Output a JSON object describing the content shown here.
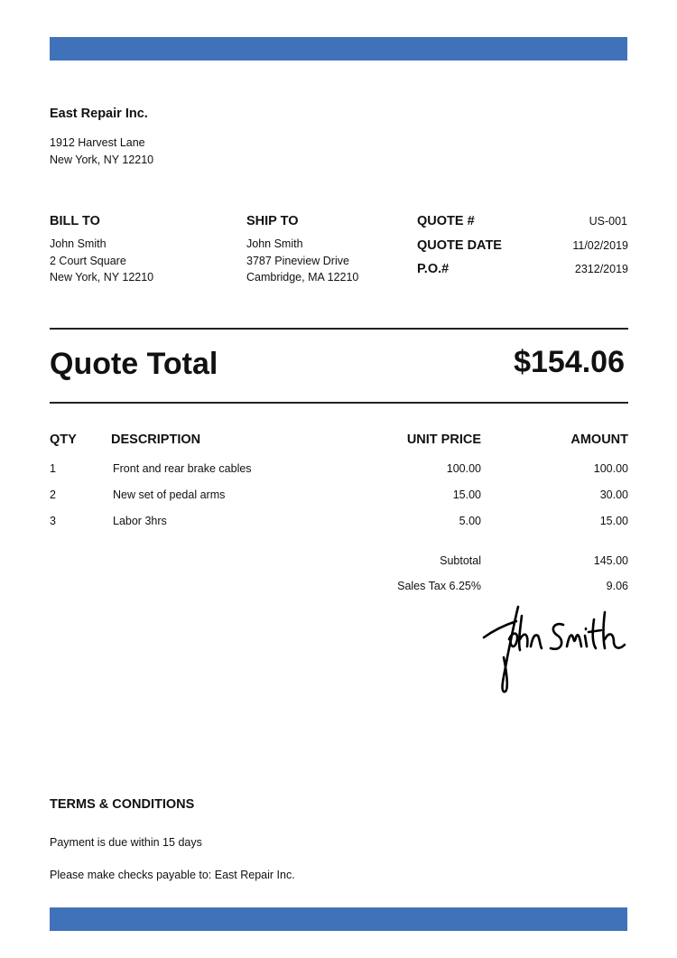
{
  "colors": {
    "accent": "#3f72b8"
  },
  "company": {
    "name": "East Repair Inc.",
    "address_line1": "1912 Harvest Lane",
    "address_line2": "New York, NY 12210"
  },
  "bill_to": {
    "heading": "BILL TO",
    "name": "John Smith",
    "line1": "2 Court Square",
    "line2": "New York, NY 12210"
  },
  "ship_to": {
    "heading": "SHIP TO",
    "name": "John Smith",
    "line1": "3787 Pineview Drive",
    "line2": "Cambridge, MA 12210"
  },
  "quote_info": [
    {
      "label": "QUOTE #",
      "value": "US-001"
    },
    {
      "label": "QUOTE DATE",
      "value": "11/02/2019"
    },
    {
      "label": "P.O.#",
      "value": "2312/2019"
    }
  ],
  "total": {
    "label": "Quote Total",
    "value": "$154.06"
  },
  "table": {
    "headers": {
      "qty": "QTY",
      "description": "DESCRIPTION",
      "unit_price": "UNIT PRICE",
      "amount": "AMOUNT"
    },
    "rows": [
      {
        "qty": "1",
        "description": "Front and rear brake cables",
        "unit_price": "100.00",
        "amount": "100.00"
      },
      {
        "qty": "2",
        "description": "New set of pedal arms",
        "unit_price": "15.00",
        "amount": "30.00"
      },
      {
        "qty": "3",
        "description": "Labor 3hrs",
        "unit_price": "5.00",
        "amount": "15.00"
      }
    ]
  },
  "summary": [
    {
      "label": "Subtotal",
      "value": "145.00"
    },
    {
      "label": "Sales Tax 6.25%",
      "value": "9.06"
    }
  ],
  "signature": "John Smith",
  "terms": {
    "heading": "TERMS & CONDITIONS",
    "line1": "Payment is due within 15 days",
    "line2": "Please make checks payable to: East Repair Inc."
  }
}
